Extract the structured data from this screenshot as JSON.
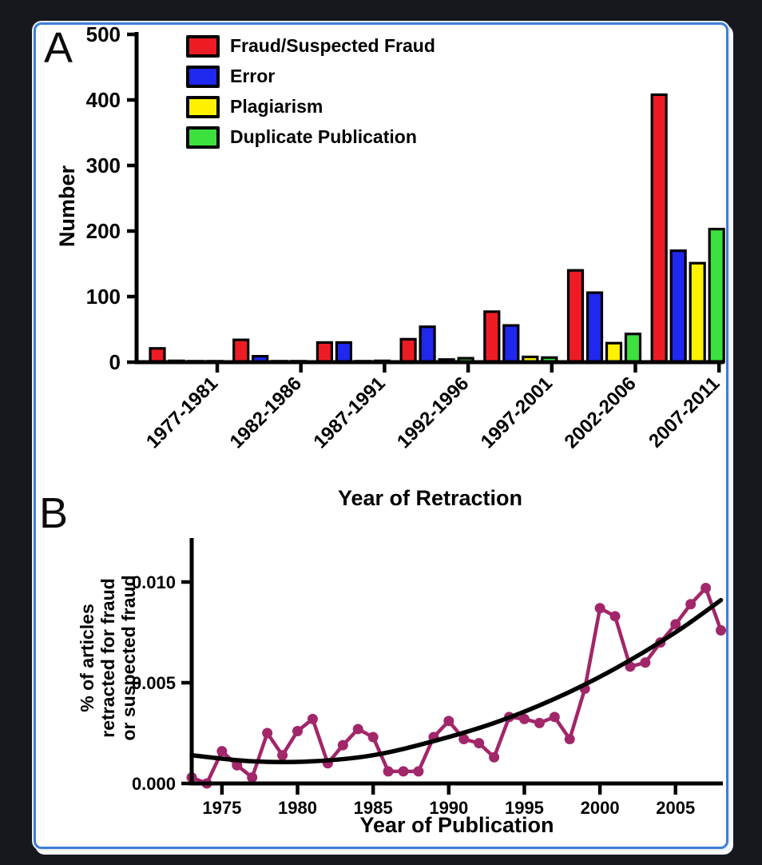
{
  "figure": {
    "border_color": "#3F7FD6",
    "background_color": "#FFFFFF",
    "outer_background": "#16181E",
    "panel_a": {
      "letter": "A",
      "ylabel": "Number",
      "xlabel": "Year of Retraction"
    },
    "panel_b": {
      "letter": "B",
      "ylabel_lines": [
        "% of articles",
        "retracted for fraud",
        "or suspected fraud"
      ],
      "xlabel": "Year of Publication"
    }
  },
  "chart_data": [
    {
      "type": "bar",
      "panel": "A",
      "title": "",
      "xlabel": "Year of Retraction",
      "ylabel": "Number",
      "ylim": [
        0,
        500
      ],
      "yticks": [
        0,
        100,
        200,
        300,
        400,
        500
      ],
      "grid": false,
      "legend_position": "top-left-inside",
      "categories": [
        "1977-1981",
        "1982-1986",
        "1987-1991",
        "1992-1996",
        "1997-2001",
        "2002-2006",
        "2007-2011"
      ],
      "series": [
        {
          "name": "Fraud/Suspected Fraud",
          "color": "#ED1C24",
          "values": [
            21,
            34,
            30,
            35,
            77,
            140,
            408
          ]
        },
        {
          "name": "Error",
          "color": "#2027EE",
          "values": [
            2,
            9,
            30,
            54,
            56,
            106,
            170
          ]
        },
        {
          "name": "Plagiarism",
          "color": "#FFF100",
          "values": [
            1,
            1,
            1,
            4,
            8,
            29,
            151
          ]
        },
        {
          "name": "Duplicate Publication",
          "color": "#3DE13D",
          "values": [
            1,
            1,
            2,
            6,
            7,
            43,
            203
          ]
        }
      ]
    },
    {
      "type": "line",
      "panel": "B",
      "title": "",
      "xlabel": "Year of Publication",
      "ylabel": "% of articles retracted for fraud or suspected fraud",
      "ylim": [
        0,
        0.0115
      ],
      "xlim": [
        1973,
        2008
      ],
      "yticks": [
        0,
        0.005,
        0.01
      ],
      "ytick_labels": [
        "0.000",
        "0.005",
        "0.010"
      ],
      "xticks": [
        1975,
        1980,
        1985,
        1990,
        1995,
        2000,
        2005
      ],
      "grid": false,
      "series": [
        {
          "name": "% of articles retracted for fraud or suspected fraud",
          "style": "line-with-markers",
          "color": "#A2266A",
          "x": [
            1973,
            1974,
            1975,
            1976,
            1977,
            1978,
            1979,
            1980,
            1981,
            1982,
            1983,
            1984,
            1985,
            1986,
            1987,
            1988,
            1989,
            1990,
            1991,
            1992,
            1993,
            1994,
            1995,
            1996,
            1997,
            1998,
            1999,
            2000,
            2001,
            2002,
            2003,
            2004,
            2005,
            2006,
            2007,
            2008
          ],
          "y": [
            0.0003,
            0.0,
            0.0016,
            0.0009,
            0.0003,
            0.0025,
            0.0014,
            0.0026,
            0.0032,
            0.001,
            0.0019,
            0.0027,
            0.0023,
            0.0006,
            0.0006,
            0.0006,
            0.0023,
            0.0031,
            0.0022,
            0.002,
            0.0013,
            0.0033,
            0.0032,
            0.003,
            0.0033,
            0.0022,
            0.0047,
            0.0087,
            0.0083,
            0.0058,
            0.006,
            0.007,
            0.0079,
            0.0089,
            0.0097,
            0.0076
          ]
        },
        {
          "name": "fitted trend curve",
          "style": "smooth-curve",
          "color": "#000000",
          "x": [
            1973,
            1977,
            1981,
            1985,
            1989,
            1993,
            1997,
            2001,
            2005,
            2008
          ],
          "y": [
            0.0014,
            0.0011,
            0.0011,
            0.0014,
            0.0021,
            0.003,
            0.0042,
            0.0057,
            0.0075,
            0.0091
          ]
        }
      ]
    }
  ]
}
